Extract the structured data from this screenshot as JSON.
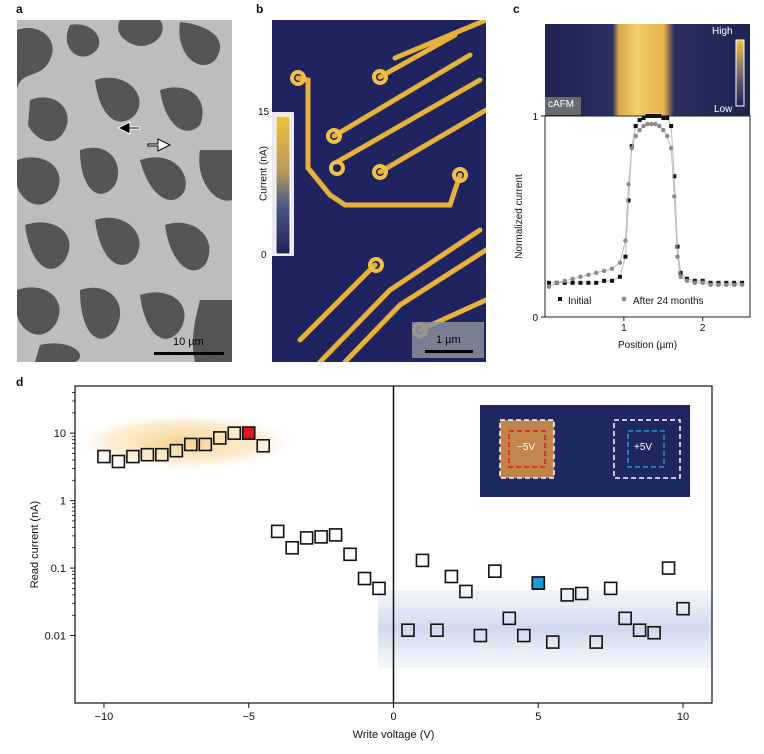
{
  "panels": {
    "a": "a",
    "b": "b",
    "c": "c",
    "d": "d"
  },
  "panel_a": {
    "scale_label": "10 µm"
  },
  "panel_b": {
    "cb_max": "15",
    "cb_min": "0",
    "cb_label": "Current (nA)",
    "scale_label": "1 µm"
  },
  "panel_c": {
    "high": "High",
    "low": "Low",
    "tag": "cAFM"
  },
  "chart_data": [
    {
      "type": "scatter",
      "title": "",
      "xlabel": "Position (µm)",
      "ylabel": "Normalized current",
      "xlim": [
        0,
        2.6
      ],
      "ylim": [
        0,
        1
      ],
      "xticks": [
        1,
        2
      ],
      "yticks": [
        0,
        1
      ],
      "legend_position": "bottom",
      "series": [
        {
          "name": "Initial",
          "color": "#111111",
          "x": [
            0.05,
            0.15,
            0.25,
            0.35,
            0.45,
            0.55,
            0.65,
            0.75,
            0.85,
            0.95,
            1.02,
            1.06,
            1.1,
            1.15,
            1.2,
            1.25,
            1.3,
            1.35,
            1.4,
            1.45,
            1.5,
            1.55,
            1.6,
            1.64,
            1.68,
            1.72,
            1.8,
            1.9,
            2.0,
            2.1,
            2.2,
            2.3,
            2.4,
            2.5
          ],
          "y": [
            0.17,
            0.17,
            0.17,
            0.17,
            0.17,
            0.17,
            0.17,
            0.18,
            0.18,
            0.2,
            0.3,
            0.58,
            0.85,
            0.95,
            0.98,
            0.99,
            1.0,
            1.0,
            1.0,
            1.0,
            0.99,
            0.99,
            0.95,
            0.7,
            0.35,
            0.22,
            0.19,
            0.18,
            0.18,
            0.17,
            0.17,
            0.17,
            0.17,
            0.17
          ]
        },
        {
          "name": "After 24 months",
          "color": "#8a8a8a",
          "x": [
            0.05,
            0.15,
            0.25,
            0.35,
            0.45,
            0.55,
            0.65,
            0.75,
            0.85,
            0.95,
            1.02,
            1.06,
            1.1,
            1.15,
            1.2,
            1.25,
            1.3,
            1.35,
            1.4,
            1.45,
            1.5,
            1.55,
            1.6,
            1.64,
            1.68,
            1.72,
            1.8,
            1.9,
            2.0,
            2.1,
            2.2,
            2.3,
            2.4,
            2.5
          ],
          "y": [
            0.15,
            0.17,
            0.18,
            0.19,
            0.2,
            0.21,
            0.22,
            0.23,
            0.24,
            0.27,
            0.38,
            0.66,
            0.84,
            0.9,
            0.93,
            0.95,
            0.96,
            0.96,
            0.96,
            0.95,
            0.93,
            0.9,
            0.84,
            0.6,
            0.3,
            0.2,
            0.18,
            0.17,
            0.17,
            0.16,
            0.16,
            0.16,
            0.16,
            0.16
          ]
        }
      ]
    },
    {
      "type": "scatter",
      "title": "",
      "xlabel": "Write voltage (V)",
      "ylabel": "Read current (nA)",
      "xlim": [
        -11,
        11
      ],
      "ylim": [
        0.001,
        50
      ],
      "yscale": "log",
      "xticks": [
        -10,
        -5,
        0,
        5,
        10
      ],
      "xticklabels": [
        "−10",
        "−5",
        "0",
        "5",
        "10"
      ],
      "yticks": [
        0.01,
        0.1,
        1,
        10
      ],
      "yticklabels": [
        "0.01",
        "0.1",
        "1",
        "10"
      ],
      "series": [
        {
          "name": "Read current",
          "x": [
            -10,
            -9.5,
            -9,
            -8.5,
            -8,
            -7.5,
            -7,
            -6.5,
            -6,
            -5.5,
            -5,
            -4.5,
            -4,
            -3.5,
            -3,
            -2.5,
            -2,
            -1.5,
            -1,
            -0.5,
            0.5,
            1,
            1.5,
            2,
            2.5,
            3,
            3.5,
            4,
            4.5,
            5,
            5.5,
            6,
            6.5,
            7,
            7.5,
            8,
            8.5,
            9,
            9.5,
            10
          ],
          "y": [
            4.5,
            3.8,
            4.5,
            4.8,
            4.8,
            5.5,
            6.8,
            6.8,
            8.5,
            10,
            10,
            6.5,
            0.35,
            0.2,
            0.28,
            0.29,
            0.31,
            0.16,
            0.07,
            0.05,
            0.012,
            0.13,
            0.012,
            0.075,
            0.045,
            0.01,
            0.09,
            0.018,
            0.01,
            0.06,
            0.008,
            0.04,
            0.042,
            0.008,
            0.05,
            0.018,
            0.012,
            0.011,
            0.1,
            0.025
          ]
        }
      ],
      "highlight": [
        {
          "x": -5,
          "y": 10,
          "color": "#e8141a"
        },
        {
          "x": 5,
          "y": 0.06,
          "color": "#1b9ad6"
        }
      ],
      "inset_labels": [
        "−5V",
        "+5V"
      ]
    }
  ]
}
